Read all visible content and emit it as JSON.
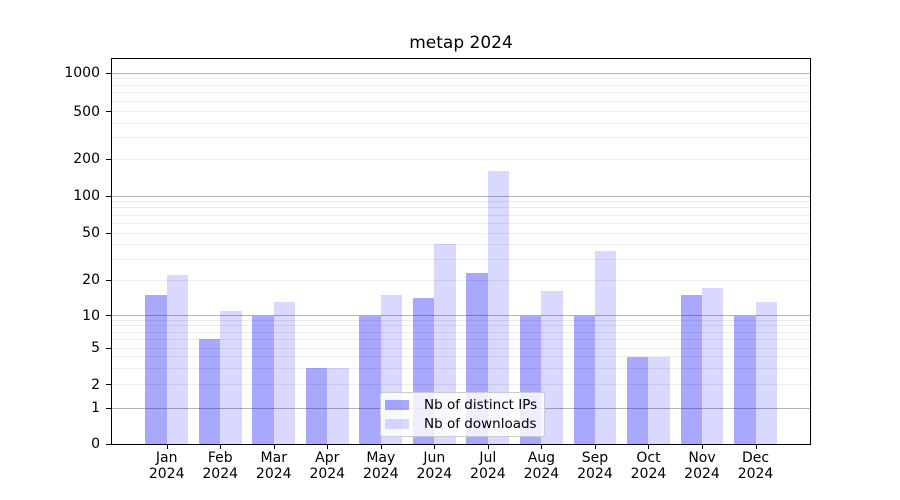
{
  "chart_data": {
    "type": "bar",
    "title": "metap 2024",
    "categories": [
      "Jan",
      "Feb",
      "Mar",
      "Apr",
      "May",
      "Jun",
      "Jul",
      "Aug",
      "Sep",
      "Oct",
      "Nov",
      "Dec"
    ],
    "category_year": "2024",
    "series": [
      {
        "name": "Nb of distinct IPs",
        "color": "rgba(0,0,255,0.34)",
        "values": [
          15,
          6,
          10,
          3,
          10,
          14,
          23,
          10,
          10,
          4,
          15,
          10
        ]
      },
      {
        "name": "Nb of downloads",
        "color": "rgba(0,0,255,0.15)",
        "values": [
          22,
          11,
          13,
          3,
          15,
          40,
          160,
          16,
          35,
          4,
          17,
          13
        ]
      }
    ],
    "xlabel": "",
    "ylabel": "",
    "yscale": "symlog",
    "ylim": [
      0,
      1300
    ],
    "y_ticks": [
      0,
      1,
      2,
      5,
      10,
      20,
      50,
      100,
      200,
      500,
      1000
    ],
    "y_minor_ticks": [
      3,
      4,
      6,
      7,
      8,
      9,
      30,
      40,
      60,
      70,
      80,
      90,
      300,
      400,
      600,
      700,
      800,
      900
    ],
    "grid": "on",
    "legend_position": "lower center",
    "colors": {
      "major_gridline": "#b3b3b3",
      "minor_gridline": "#ececec",
      "spine": "#000000",
      "background": "#ffffff"
    }
  }
}
